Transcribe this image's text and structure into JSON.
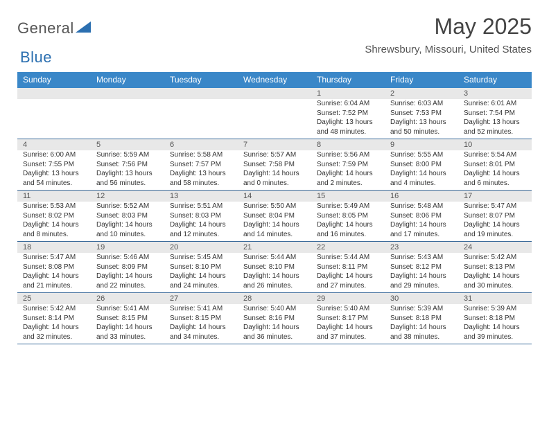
{
  "logo": {
    "general": "General",
    "blue": "Blue"
  },
  "header": {
    "month": "May 2025",
    "location": "Shrewsbury, Missouri, United States"
  },
  "style": {
    "header_bg": "#3a87c8",
    "header_fg": "#ffffff",
    "row_sep": "#3a6a9a",
    "daynum_bg": "#e8e8e8",
    "text": "#333333",
    "logo_blue": "#2b6fb0"
  },
  "weekdays": [
    "Sunday",
    "Monday",
    "Tuesday",
    "Wednesday",
    "Thursday",
    "Friday",
    "Saturday"
  ],
  "weeks": [
    [
      null,
      null,
      null,
      null,
      {
        "d": "1",
        "r": "6:04 AM",
        "s": "7:52 PM",
        "l": "13 hours and 48 minutes."
      },
      {
        "d": "2",
        "r": "6:03 AM",
        "s": "7:53 PM",
        "l": "13 hours and 50 minutes."
      },
      {
        "d": "3",
        "r": "6:01 AM",
        "s": "7:54 PM",
        "l": "13 hours and 52 minutes."
      }
    ],
    [
      {
        "d": "4",
        "r": "6:00 AM",
        "s": "7:55 PM",
        "l": "13 hours and 54 minutes."
      },
      {
        "d": "5",
        "r": "5:59 AM",
        "s": "7:56 PM",
        "l": "13 hours and 56 minutes."
      },
      {
        "d": "6",
        "r": "5:58 AM",
        "s": "7:57 PM",
        "l": "13 hours and 58 minutes."
      },
      {
        "d": "7",
        "r": "5:57 AM",
        "s": "7:58 PM",
        "l": "14 hours and 0 minutes."
      },
      {
        "d": "8",
        "r": "5:56 AM",
        "s": "7:59 PM",
        "l": "14 hours and 2 minutes."
      },
      {
        "d": "9",
        "r": "5:55 AM",
        "s": "8:00 PM",
        "l": "14 hours and 4 minutes."
      },
      {
        "d": "10",
        "r": "5:54 AM",
        "s": "8:01 PM",
        "l": "14 hours and 6 minutes."
      }
    ],
    [
      {
        "d": "11",
        "r": "5:53 AM",
        "s": "8:02 PM",
        "l": "14 hours and 8 minutes."
      },
      {
        "d": "12",
        "r": "5:52 AM",
        "s": "8:03 PM",
        "l": "14 hours and 10 minutes."
      },
      {
        "d": "13",
        "r": "5:51 AM",
        "s": "8:03 PM",
        "l": "14 hours and 12 minutes."
      },
      {
        "d": "14",
        "r": "5:50 AM",
        "s": "8:04 PM",
        "l": "14 hours and 14 minutes."
      },
      {
        "d": "15",
        "r": "5:49 AM",
        "s": "8:05 PM",
        "l": "14 hours and 16 minutes."
      },
      {
        "d": "16",
        "r": "5:48 AM",
        "s": "8:06 PM",
        "l": "14 hours and 17 minutes."
      },
      {
        "d": "17",
        "r": "5:47 AM",
        "s": "8:07 PM",
        "l": "14 hours and 19 minutes."
      }
    ],
    [
      {
        "d": "18",
        "r": "5:47 AM",
        "s": "8:08 PM",
        "l": "14 hours and 21 minutes."
      },
      {
        "d": "19",
        "r": "5:46 AM",
        "s": "8:09 PM",
        "l": "14 hours and 22 minutes."
      },
      {
        "d": "20",
        "r": "5:45 AM",
        "s": "8:10 PM",
        "l": "14 hours and 24 minutes."
      },
      {
        "d": "21",
        "r": "5:44 AM",
        "s": "8:10 PM",
        "l": "14 hours and 26 minutes."
      },
      {
        "d": "22",
        "r": "5:44 AM",
        "s": "8:11 PM",
        "l": "14 hours and 27 minutes."
      },
      {
        "d": "23",
        "r": "5:43 AM",
        "s": "8:12 PM",
        "l": "14 hours and 29 minutes."
      },
      {
        "d": "24",
        "r": "5:42 AM",
        "s": "8:13 PM",
        "l": "14 hours and 30 minutes."
      }
    ],
    [
      {
        "d": "25",
        "r": "5:42 AM",
        "s": "8:14 PM",
        "l": "14 hours and 32 minutes."
      },
      {
        "d": "26",
        "r": "5:41 AM",
        "s": "8:15 PM",
        "l": "14 hours and 33 minutes."
      },
      {
        "d": "27",
        "r": "5:41 AM",
        "s": "8:15 PM",
        "l": "14 hours and 34 minutes."
      },
      {
        "d": "28",
        "r": "5:40 AM",
        "s": "8:16 PM",
        "l": "14 hours and 36 minutes."
      },
      {
        "d": "29",
        "r": "5:40 AM",
        "s": "8:17 PM",
        "l": "14 hours and 37 minutes."
      },
      {
        "d": "30",
        "r": "5:39 AM",
        "s": "8:18 PM",
        "l": "14 hours and 38 minutes."
      },
      {
        "d": "31",
        "r": "5:39 AM",
        "s": "8:18 PM",
        "l": "14 hours and 39 minutes."
      }
    ]
  ],
  "labels": {
    "sunrise": "Sunrise: ",
    "sunset": "Sunset: ",
    "daylight": "Daylight: "
  }
}
